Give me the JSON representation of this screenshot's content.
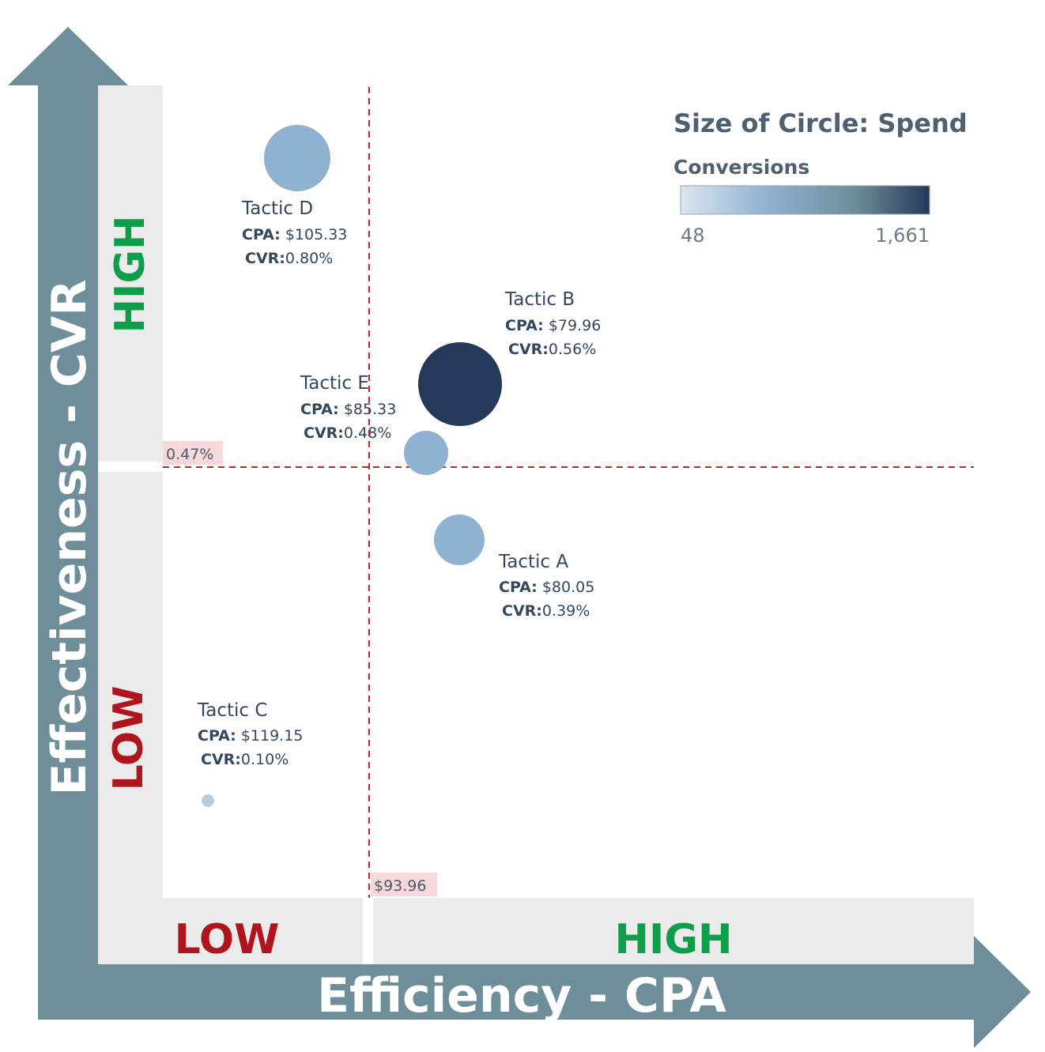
{
  "legend": {
    "size_title": "Size of Circle: Spend",
    "color_title": "Conversions",
    "color_min_label": "48",
    "color_max_label": "1,661",
    "color_min": 48,
    "color_max": 1661,
    "colors": [
      "#dbe6f0",
      "#8fb1d2",
      "#6e8d99",
      "#25395b"
    ]
  },
  "axes": {
    "x_title": "Efficiency - CPA",
    "y_title": "Effectiveness - CVR",
    "x_low": "LOW",
    "x_high": "HIGH",
    "y_low": "LOW",
    "y_high": "HIGH",
    "low_color": "#b0141d",
    "high_color": "#0e9e4a",
    "arrow_color": "#6e8f99",
    "band_color": "#ebebeb"
  },
  "reference_lines": {
    "cpa_label": "$93.96",
    "cvr_label": "0.47%",
    "line_color": "#c4232d"
  },
  "chart_data": {
    "type": "scatter",
    "x_reference": 93.96,
    "y_reference": 0.47,
    "size_encoding": "Spend",
    "color_encoding": "Conversions",
    "points": [
      {
        "name": "Tactic A",
        "cpa_label": "CPA:",
        "cpa": "$80.05",
        "cvr_label": "CVR:",
        "cvr": "0.39%"
      },
      {
        "name": "Tactic B",
        "cpa_label": "CPA:",
        "cpa": "$79.96",
        "cvr_label": "CVR:",
        "cvr": "0.56%"
      },
      {
        "name": "Tactic C",
        "cpa_label": "CPA:",
        "cpa": "$119.15",
        "cvr_label": "CVR:",
        "cvr": "0.10%"
      },
      {
        "name": "Tactic D",
        "cpa_label": "CPA:",
        "cpa": "$105.33",
        "cvr_label": "CVR:",
        "cvr": "0.80%"
      },
      {
        "name": "Tactic E",
        "cpa_label": "CPA:",
        "cpa": "$85.33",
        "cvr_label": "CVR:",
        "cvr": "0.48%"
      }
    ]
  }
}
